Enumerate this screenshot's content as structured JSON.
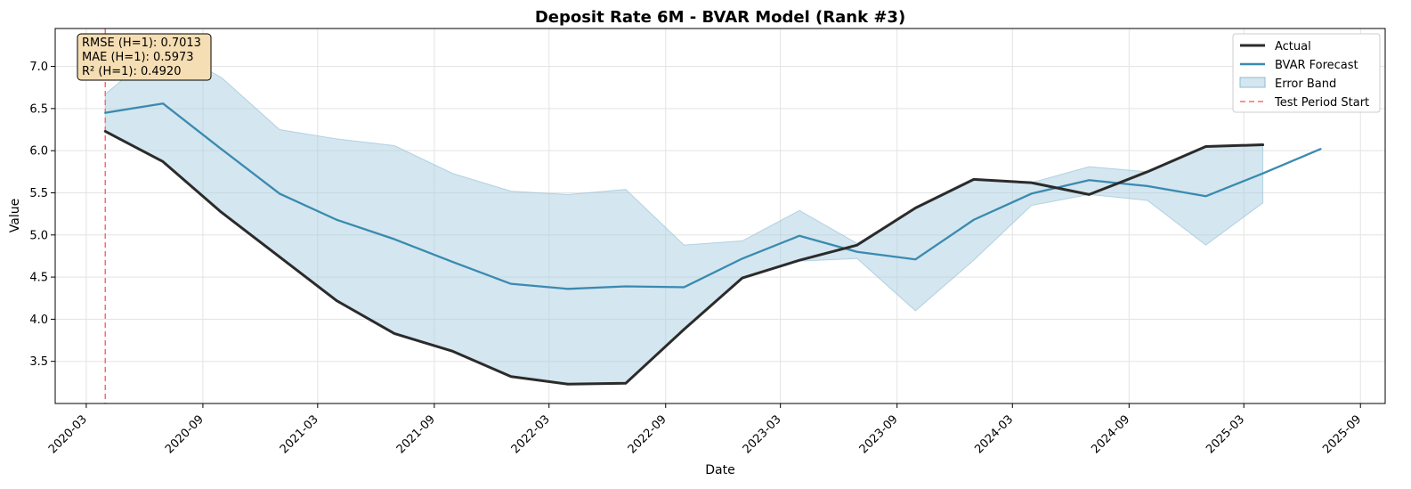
{
  "chart_data": {
    "type": "line",
    "title": "Deposit Rate 6M - BVAR Model (Rank #3)",
    "xlabel": "Date",
    "ylabel": "Value",
    "xlim": [
      "2020-01-12",
      "2025-10-10"
    ],
    "ylim": [
      3.0,
      7.45
    ],
    "grid": true,
    "legend_position": "top-right",
    "x_ticks": [
      "2020-03-01",
      "2020-09-01",
      "2021-03-01",
      "2021-09-01",
      "2022-03-01",
      "2022-09-01",
      "2023-03-01",
      "2023-09-01",
      "2024-03-01",
      "2024-09-01",
      "2025-03-01",
      "2025-09-01"
    ],
    "x_tick_labels": [
      "2020-03",
      "2020-09",
      "2021-03",
      "2021-09",
      "2022-03",
      "2022-09",
      "2023-03",
      "2023-09",
      "2024-03",
      "2024-09",
      "2025-03",
      "2025-09"
    ],
    "y_ticks": [
      3.5,
      4.0,
      4.5,
      5.0,
      5.5,
      6.0,
      6.5,
      7.0
    ],
    "y_tick_labels": [
      "3.5",
      "4.0",
      "4.5",
      "5.0",
      "5.5",
      "6.0",
      "6.5",
      "7.0"
    ],
    "series": [
      {
        "name": "Actual",
        "color": "#2b2b2b",
        "x": [
          "2020-03-31",
          "2020-06-30",
          "2020-09-30",
          "2020-12-31",
          "2021-03-31",
          "2021-06-30",
          "2021-09-30",
          "2021-12-31",
          "2022-03-31",
          "2022-06-30",
          "2022-09-30",
          "2022-12-31",
          "2023-03-31",
          "2023-06-30",
          "2023-09-30",
          "2023-12-31",
          "2024-03-31",
          "2024-06-30",
          "2024-09-30",
          "2024-12-31",
          "2025-03-31"
        ],
        "values": [
          6.23,
          5.87,
          5.27,
          4.74,
          4.22,
          3.83,
          3.62,
          3.32,
          3.23,
          3.24,
          3.88,
          4.49,
          4.7,
          4.88,
          5.32,
          5.66,
          5.62,
          5.48,
          5.75,
          6.05,
          6.07
        ]
      },
      {
        "name": "BVAR Forecast",
        "color": "#3a8ab0",
        "x": [
          "2020-03-31",
          "2020-06-30",
          "2020-09-30",
          "2020-12-31",
          "2021-03-31",
          "2021-06-30",
          "2021-09-30",
          "2021-12-31",
          "2022-03-31",
          "2022-06-30",
          "2022-09-30",
          "2022-12-31",
          "2023-03-31",
          "2023-06-30",
          "2023-09-30",
          "2023-12-31",
          "2024-03-31",
          "2024-06-30",
          "2024-09-30",
          "2024-12-31",
          "2025-03-31",
          "2025-06-30"
        ],
        "values": [
          6.45,
          6.56,
          6.02,
          5.49,
          5.18,
          4.95,
          4.68,
          4.42,
          4.36,
          4.39,
          4.38,
          4.72,
          4.99,
          4.8,
          4.71,
          5.18,
          5.49,
          5.65,
          5.58,
          5.46,
          5.73,
          6.02
        ]
      }
    ],
    "error_band": {
      "name": "Error Band",
      "color": "#a9cde0",
      "x": [
        "2020-03-31",
        "2020-06-30",
        "2020-09-30",
        "2020-12-31",
        "2021-03-31",
        "2021-06-30",
        "2021-09-30",
        "2021-12-31",
        "2022-03-31",
        "2022-06-30",
        "2022-09-30",
        "2022-12-31",
        "2023-03-31",
        "2023-06-30",
        "2023-09-30",
        "2023-12-31",
        "2024-03-31",
        "2024-06-30",
        "2024-09-30",
        "2024-12-31",
        "2025-03-31"
      ],
      "upper": [
        6.67,
        7.25,
        6.87,
        6.25,
        6.14,
        6.06,
        5.73,
        5.52,
        5.48,
        5.54,
        4.88,
        4.93,
        5.29,
        4.9,
        5.32,
        5.66,
        5.62,
        5.81,
        5.75,
        6.05,
        6.07
      ],
      "lower": [
        6.23,
        5.87,
        5.27,
        4.74,
        4.22,
        3.83,
        3.62,
        3.32,
        3.23,
        3.24,
        3.88,
        4.49,
        4.69,
        4.72,
        4.1,
        4.7,
        5.35,
        5.48,
        5.41,
        4.88,
        5.38
      ]
    },
    "test_period_start": {
      "name": "Test Period Start",
      "x": "2020-03-31",
      "color": "#ff6b6b"
    },
    "metrics": [
      "RMSE (H=1): 0.7013",
      "MAE (H=1): 0.5973",
      "R² (H=1): 0.4920"
    ],
    "metrics_box_color": "#f5deb3"
  }
}
